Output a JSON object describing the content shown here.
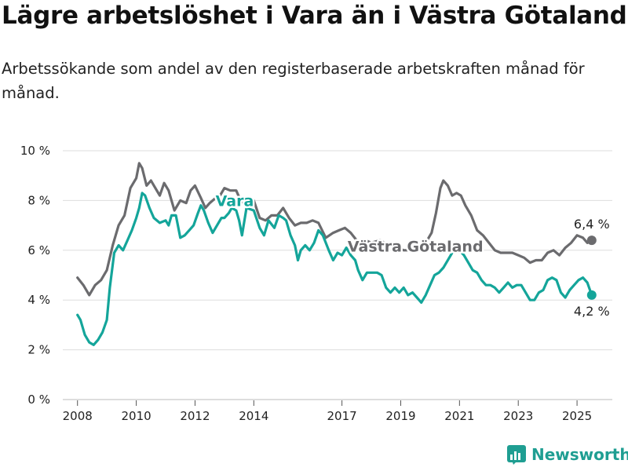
{
  "title": "Lägre arbetslöshet i Vara än i Västra Götaland",
  "subtitle": "Arbetssökande som andel av den registerbaserade arbetskraften månad för månad.",
  "brand": "Newsworthy",
  "colors": {
    "vara": "#14a59a",
    "vg": "#6b6b6e",
    "grid": "#dddddd",
    "brand": "#1f9e92"
  },
  "chart_data": {
    "type": "line",
    "title": "Lägre arbetslöshet i Vara än i Västra Götaland",
    "subtitle": "Arbetssökande som andel av den registerbaserade arbetskraften månad för månad.",
    "xlabel": "",
    "ylabel": "",
    "ylim": [
      0,
      10
    ],
    "xlim": [
      2007.5,
      2026.2
    ],
    "yticks": [
      "0 %",
      "2 %",
      "4 %",
      "6 %",
      "8 %",
      "10 %"
    ],
    "xticks": [
      "2008",
      "2010",
      "2012",
      "2014",
      "2017",
      "2019",
      "2021",
      "2023",
      "2025"
    ],
    "grid": "horizontal",
    "series": [
      {
        "name": "Västra Götaland",
        "end_label": "6,4 %",
        "points": [
          [
            2008.0,
            4.9
          ],
          [
            2008.2,
            4.6
          ],
          [
            2008.4,
            4.2
          ],
          [
            2008.6,
            4.6
          ],
          [
            2008.8,
            4.8
          ],
          [
            2009.0,
            5.2
          ],
          [
            2009.2,
            6.2
          ],
          [
            2009.4,
            7.0
          ],
          [
            2009.6,
            7.4
          ],
          [
            2009.8,
            8.5
          ],
          [
            2010.0,
            8.9
          ],
          [
            2010.1,
            9.5
          ],
          [
            2010.2,
            9.3
          ],
          [
            2010.35,
            8.6
          ],
          [
            2010.5,
            8.8
          ],
          [
            2010.65,
            8.5
          ],
          [
            2010.8,
            8.2
          ],
          [
            2010.95,
            8.7
          ],
          [
            2011.1,
            8.4
          ],
          [
            2011.3,
            7.6
          ],
          [
            2011.5,
            8.0
          ],
          [
            2011.7,
            7.9
          ],
          [
            2011.85,
            8.4
          ],
          [
            2012.0,
            8.6
          ],
          [
            2012.2,
            8.1
          ],
          [
            2012.35,
            7.7
          ],
          [
            2012.5,
            7.9
          ],
          [
            2012.7,
            8.1
          ],
          [
            2012.85,
            8.2
          ],
          [
            2013.0,
            8.5
          ],
          [
            2013.2,
            8.4
          ],
          [
            2013.4,
            8.4
          ],
          [
            2013.55,
            8.0
          ],
          [
            2013.75,
            7.8
          ],
          [
            2014.0,
            8.0
          ],
          [
            2014.2,
            7.3
          ],
          [
            2014.4,
            7.2
          ],
          [
            2014.6,
            7.4
          ],
          [
            2014.8,
            7.4
          ],
          [
            2015.0,
            7.7
          ],
          [
            2015.2,
            7.3
          ],
          [
            2015.4,
            7.0
          ],
          [
            2015.6,
            7.1
          ],
          [
            2015.8,
            7.1
          ],
          [
            2016.0,
            7.2
          ],
          [
            2016.2,
            7.1
          ],
          [
            2016.45,
            6.5
          ],
          [
            2016.7,
            6.7
          ],
          [
            2016.9,
            6.8
          ],
          [
            2017.1,
            6.9
          ],
          [
            2017.3,
            6.7
          ],
          [
            2017.5,
            6.4
          ],
          [
            2017.8,
            6.4
          ],
          [
            2018.0,
            6.3
          ],
          [
            2018.3,
            6.4
          ],
          [
            2018.6,
            6.2
          ],
          [
            2018.9,
            6.1
          ],
          [
            2019.1,
            6.0
          ],
          [
            2019.3,
            6.0
          ],
          [
            2019.5,
            6.0
          ],
          [
            2019.7,
            6.2
          ],
          [
            2019.9,
            6.4
          ],
          [
            2020.05,
            6.7
          ],
          [
            2020.2,
            7.5
          ],
          [
            2020.35,
            8.5
          ],
          [
            2020.45,
            8.8
          ],
          [
            2020.6,
            8.6
          ],
          [
            2020.75,
            8.2
          ],
          [
            2020.9,
            8.3
          ],
          [
            2021.05,
            8.2
          ],
          [
            2021.2,
            7.8
          ],
          [
            2021.4,
            7.4
          ],
          [
            2021.6,
            6.8
          ],
          [
            2021.8,
            6.6
          ],
          [
            2022.0,
            6.3
          ],
          [
            2022.2,
            6.0
          ],
          [
            2022.4,
            5.9
          ],
          [
            2022.6,
            5.9
          ],
          [
            2022.8,
            5.9
          ],
          [
            2023.0,
            5.8
          ],
          [
            2023.2,
            5.7
          ],
          [
            2023.4,
            5.5
          ],
          [
            2023.6,
            5.6
          ],
          [
            2023.8,
            5.6
          ],
          [
            2024.0,
            5.9
          ],
          [
            2024.2,
            6.0
          ],
          [
            2024.4,
            5.8
          ],
          [
            2024.6,
            6.1
          ],
          [
            2024.8,
            6.3
          ],
          [
            2025.0,
            6.6
          ],
          [
            2025.2,
            6.5
          ],
          [
            2025.35,
            6.3
          ],
          [
            2025.5,
            6.4
          ]
        ]
      },
      {
        "name": "Vara",
        "end_label": "4,2 %",
        "points": [
          [
            2008.0,
            3.4
          ],
          [
            2008.1,
            3.2
          ],
          [
            2008.25,
            2.6
          ],
          [
            2008.4,
            2.3
          ],
          [
            2008.55,
            2.2
          ],
          [
            2008.7,
            2.4
          ],
          [
            2008.85,
            2.7
          ],
          [
            2009.0,
            3.2
          ],
          [
            2009.1,
            4.5
          ],
          [
            2009.25,
            5.9
          ],
          [
            2009.4,
            6.2
          ],
          [
            2009.55,
            6.0
          ],
          [
            2009.7,
            6.4
          ],
          [
            2009.85,
            6.8
          ],
          [
            2010.0,
            7.3
          ],
          [
            2010.1,
            7.7
          ],
          [
            2010.2,
            8.3
          ],
          [
            2010.3,
            8.2
          ],
          [
            2010.45,
            7.7
          ],
          [
            2010.6,
            7.3
          ],
          [
            2010.8,
            7.1
          ],
          [
            2011.0,
            7.2
          ],
          [
            2011.1,
            7.0
          ],
          [
            2011.2,
            7.4
          ],
          [
            2011.35,
            7.4
          ],
          [
            2011.5,
            6.5
          ],
          [
            2011.65,
            6.6
          ],
          [
            2011.8,
            6.8
          ],
          [
            2011.95,
            7.0
          ],
          [
            2012.1,
            7.5
          ],
          [
            2012.2,
            7.8
          ],
          [
            2012.3,
            7.6
          ],
          [
            2012.45,
            7.1
          ],
          [
            2012.6,
            6.7
          ],
          [
            2012.75,
            7.0
          ],
          [
            2012.9,
            7.3
          ],
          [
            2013.0,
            7.3
          ],
          [
            2013.15,
            7.5
          ],
          [
            2013.25,
            7.7
          ],
          [
            2013.4,
            7.6
          ],
          [
            2013.5,
            7.2
          ],
          [
            2013.6,
            6.6
          ],
          [
            2013.75,
            7.7
          ],
          [
            2014.0,
            7.6
          ],
          [
            2014.2,
            6.9
          ],
          [
            2014.35,
            6.6
          ],
          [
            2014.5,
            7.2
          ],
          [
            2014.7,
            6.9
          ],
          [
            2014.85,
            7.4
          ],
          [
            2015.0,
            7.3
          ],
          [
            2015.1,
            7.2
          ],
          [
            2015.25,
            6.6
          ],
          [
            2015.4,
            6.2
          ],
          [
            2015.5,
            5.6
          ],
          [
            2015.6,
            6.0
          ],
          [
            2015.75,
            6.2
          ],
          [
            2015.9,
            6.0
          ],
          [
            2016.05,
            6.3
          ],
          [
            2016.2,
            6.8
          ],
          [
            2016.35,
            6.6
          ],
          [
            2016.55,
            6.0
          ],
          [
            2016.7,
            5.6
          ],
          [
            2016.85,
            5.9
          ],
          [
            2017.0,
            5.8
          ],
          [
            2017.15,
            6.1
          ],
          [
            2017.3,
            5.8
          ],
          [
            2017.45,
            5.6
          ],
          [
            2017.55,
            5.2
          ],
          [
            2017.7,
            4.8
          ],
          [
            2017.85,
            5.1
          ],
          [
            2018.0,
            5.1
          ],
          [
            2018.2,
            5.1
          ],
          [
            2018.35,
            5.0
          ],
          [
            2018.5,
            4.5
          ],
          [
            2018.65,
            4.3
          ],
          [
            2018.8,
            4.5
          ],
          [
            2018.95,
            4.3
          ],
          [
            2019.1,
            4.5
          ],
          [
            2019.25,
            4.2
          ],
          [
            2019.4,
            4.3
          ],
          [
            2019.55,
            4.1
          ],
          [
            2019.7,
            3.9
          ],
          [
            2019.85,
            4.2
          ],
          [
            2020.0,
            4.6
          ],
          [
            2020.15,
            5.0
          ],
          [
            2020.3,
            5.1
          ],
          [
            2020.45,
            5.3
          ],
          [
            2020.6,
            5.6
          ],
          [
            2020.75,
            5.9
          ],
          [
            2020.9,
            6.0
          ],
          [
            2021.0,
            6.0
          ],
          [
            2021.15,
            5.8
          ],
          [
            2021.3,
            5.5
          ],
          [
            2021.45,
            5.2
          ],
          [
            2021.6,
            5.1
          ],
          [
            2021.75,
            4.8
          ],
          [
            2021.9,
            4.6
          ],
          [
            2022.05,
            4.6
          ],
          [
            2022.2,
            4.5
          ],
          [
            2022.35,
            4.3
          ],
          [
            2022.5,
            4.5
          ],
          [
            2022.65,
            4.7
          ],
          [
            2022.8,
            4.5
          ],
          [
            2022.95,
            4.6
          ],
          [
            2023.1,
            4.6
          ],
          [
            2023.25,
            4.3
          ],
          [
            2023.4,
            4.0
          ],
          [
            2023.55,
            4.0
          ],
          [
            2023.7,
            4.3
          ],
          [
            2023.85,
            4.4
          ],
          [
            2024.0,
            4.8
          ],
          [
            2024.15,
            4.9
          ],
          [
            2024.3,
            4.8
          ],
          [
            2024.45,
            4.3
          ],
          [
            2024.6,
            4.1
          ],
          [
            2024.75,
            4.4
          ],
          [
            2024.9,
            4.6
          ],
          [
            2025.05,
            4.8
          ],
          [
            2025.2,
            4.9
          ],
          [
            2025.35,
            4.7
          ],
          [
            2025.5,
            4.2
          ]
        ]
      }
    ]
  }
}
